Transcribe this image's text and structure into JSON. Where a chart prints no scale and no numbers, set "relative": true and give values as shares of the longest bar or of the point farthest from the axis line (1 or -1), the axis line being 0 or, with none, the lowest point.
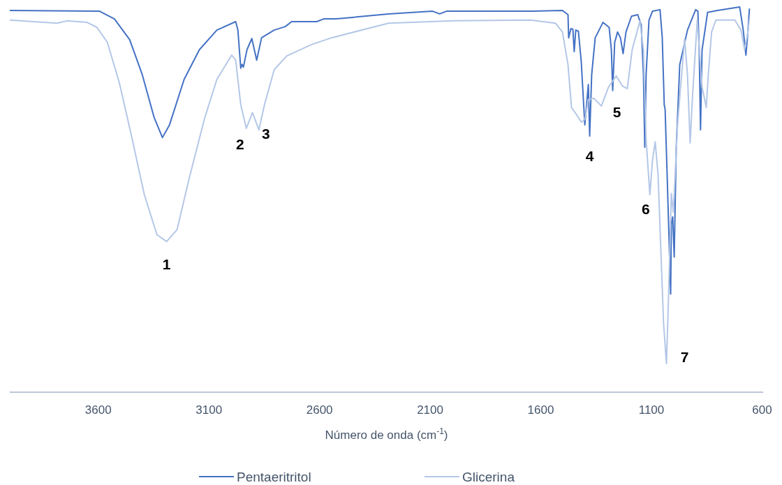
{
  "chart_data": {
    "type": "line",
    "relative": true,
    "xlabel": "Número de onda (cm$^{-1}$)",
    "xlim": [
      4000,
      595
    ],
    "xticks": [
      3600,
      3100,
      2600,
      2100,
      1600,
      1100,
      600
    ],
    "legend": "bottom",
    "grid": false,
    "marker": "none",
    "line_style": "solid",
    "series": [
      {
        "name": "Pentaeritritol",
        "color": "#4472c4",
        "x": [
          4000,
          3594,
          3527,
          3458,
          3401,
          3348,
          3310,
          3278,
          3212,
          3143,
          3064,
          2979,
          2969,
          2956,
          2950,
          2944,
          2928,
          2906,
          2884,
          2862,
          2805,
          2755,
          2726,
          2613,
          2581,
          2524,
          2288,
          2089,
          2057,
          2026,
          1647,
          1502,
          1477,
          1474,
          1464,
          1455,
          1449,
          1442,
          1430,
          1417,
          1401,
          1395,
          1385,
          1379,
          1370,
          1354,
          1319,
          1291,
          1281,
          1275,
          1266,
          1253,
          1240,
          1228,
          1215,
          1190,
          1162,
          1146,
          1136,
          1130,
          1124,
          1111,
          1095,
          1061,
          1051,
          1042,
          1038,
          1029,
          1013,
          1010,
          1004,
          997,
          988,
          972,
          937,
          900,
          890,
          884,
          878,
          871,
          846,
          802,
          701,
          685,
          673,
          666,
          657
        ],
        "values": [
          0.991,
          0.989,
          0.969,
          0.915,
          0.824,
          0.714,
          0.661,
          0.694,
          0.812,
          0.889,
          0.94,
          0.962,
          0.94,
          0.841,
          0.851,
          0.844,
          0.889,
          0.918,
          0.862,
          0.92,
          0.94,
          0.949,
          0.962,
          0.962,
          0.969,
          0.969,
          0.982,
          0.989,
          0.982,
          0.989,
          0.989,
          0.991,
          0.98,
          0.92,
          0.944,
          0.942,
          0.884,
          0.94,
          0.937,
          0.857,
          0.694,
          0.734,
          0.799,
          0.665,
          0.824,
          0.92,
          0.96,
          0.947,
          0.889,
          0.783,
          0.908,
          0.935,
          0.92,
          0.879,
          0.935,
          0.976,
          0.98,
          0.953,
          0.824,
          0.636,
          0.824,
          0.966,
          0.989,
          0.993,
          0.92,
          0.746,
          0.734,
          0.565,
          0.255,
          0.437,
          0.455,
          0.351,
          0.63,
          0.85,
          0.94,
          0.993,
          0.989,
          0.889,
          0.681,
          0.889,
          0.986,
          0.991,
          1.0,
          0.94,
          0.875,
          0.92,
          0.996
        ]
      },
      {
        "name": "Glicerina",
        "color": "#b4c7e7",
        "x": [
          4000,
          3786,
          3742,
          3650,
          3606,
          3559,
          3505,
          3449,
          3392,
          3335,
          3291,
          3244,
          3190,
          3121,
          3064,
          2997,
          2979,
          2956,
          2931,
          2903,
          2874,
          2849,
          2805,
          2748,
          2638,
          2546,
          2288,
          1994,
          1647,
          1534,
          1502,
          1477,
          1461,
          1439,
          1417,
          1401,
          1385,
          1360,
          1326,
          1294,
          1259,
          1231,
          1209,
          1187,
          1152,
          1136,
          1124,
          1107,
          1095,
          1083,
          1070,
          1045,
          1032,
          1023,
          1010,
          1001,
          982,
          950,
          937,
          925,
          915,
          893,
          871,
          852,
          843,
          828,
          809,
          723,
          695,
          679,
          666,
          657
        ],
        "values": [
          0.966,
          0.958,
          0.964,
          0.96,
          0.947,
          0.908,
          0.804,
          0.663,
          0.513,
          0.409,
          0.391,
          0.422,
          0.553,
          0.708,
          0.812,
          0.875,
          0.862,
          0.746,
          0.685,
          0.726,
          0.681,
          0.746,
          0.837,
          0.873,
          0.902,
          0.92,
          0.958,
          0.964,
          0.966,
          0.958,
          0.935,
          0.85,
          0.739,
          0.721,
          0.701,
          0.708,
          0.759,
          0.763,
          0.743,
          0.792,
          0.821,
          0.795,
          0.788,
          0.889,
          0.964,
          0.889,
          0.656,
          0.513,
          0.603,
          0.65,
          0.565,
          0.178,
          0.074,
          0.241,
          0.516,
          0.467,
          0.694,
          0.918,
          0.824,
          0.647,
          0.759,
          0.966,
          0.792,
          0.739,
          0.824,
          0.935,
          0.966,
          0.966,
          0.94,
          0.889,
          0.927,
          0.969
        ]
      }
    ],
    "annotations": [
      {
        "text": "1",
        "x": 3291,
        "y": 0.391
      },
      {
        "text": "2",
        "x": 2931,
        "y": 0.685
      },
      {
        "text": "3",
        "x": 2874,
        "y": 0.681
      },
      {
        "text": "4",
        "x": 1379,
        "y": 0.665
      },
      {
        "text": "5",
        "x": 1275,
        "y": 0.783
      },
      {
        "text": "6",
        "x": 1107,
        "y": 0.513
      },
      {
        "text": "7",
        "x": 1032,
        "y": 0.074
      }
    ]
  }
}
